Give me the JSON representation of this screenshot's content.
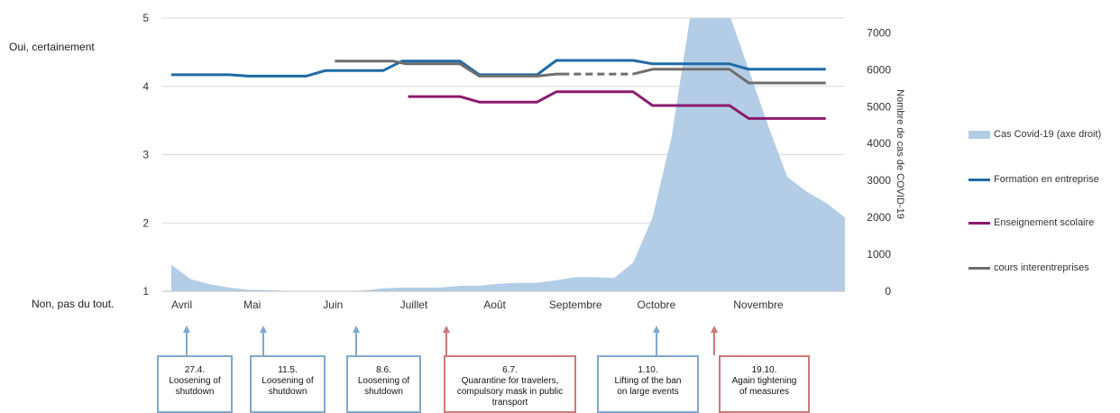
{
  "chart_data": {
    "type": "line",
    "left_axis": {
      "ticks": [
        "1",
        "2",
        "3",
        "4",
        "5"
      ],
      "ylim": [
        1,
        5
      ],
      "top_label": "Oui, certainement",
      "bottom_label": "Non, pas du tout."
    },
    "right_axis": {
      "ticks": [
        "0",
        "1000",
        "2000",
        "3000",
        "4000",
        "5000",
        "6000",
        "7000"
      ],
      "ylim": [
        0,
        7400
      ],
      "label": "Nombre de cas de COVID-19"
    },
    "x_axis": {
      "range": [
        0,
        35
      ],
      "month_labels": [
        {
          "x": 0,
          "label": "Avril"
        },
        {
          "x": 4.2,
          "label": "Mai"
        },
        {
          "x": 8.4,
          "label": "Juin"
        },
        {
          "x": 12.6,
          "label": "Juillet"
        },
        {
          "x": 16.8,
          "label": "Août"
        },
        {
          "x": 21.0,
          "label": "Septembre"
        },
        {
          "x": 25.2,
          "label": "Octobre"
        },
        {
          "x": 30.5,
          "label": "Novembre"
        }
      ]
    },
    "area_series": {
      "name": "Cas Covid-19 (axe droit)",
      "color": "#b3cde6",
      "x": [
        0,
        1,
        2,
        3,
        4,
        5,
        6,
        7,
        8,
        9,
        10,
        11,
        12,
        13,
        14,
        15,
        16,
        17,
        18,
        19,
        20,
        21,
        22,
        23,
        24,
        25,
        26,
        27,
        28,
        29,
        30,
        31,
        32,
        33,
        34,
        35
      ],
      "values": [
        720,
        330,
        190,
        100,
        40,
        30,
        10,
        10,
        10,
        10,
        20,
        80,
        100,
        100,
        100,
        150,
        150,
        200,
        230,
        230,
        300,
        380,
        380,
        360,
        780,
        2000,
        4200,
        7600,
        7600,
        7500,
        6000,
        4500,
        3100,
        2700,
        2400,
        2000
      ]
    },
    "series": [
      {
        "name": "Formation en entreprise",
        "color": "#1f6aa5",
        "dashed": false,
        "points": [
          [
            0,
            4.17
          ],
          [
            3,
            4.17
          ],
          [
            4,
            4.15
          ],
          [
            7,
            4.15
          ],
          [
            8,
            4.23
          ],
          [
            11,
            4.23
          ],
          [
            12,
            4.37
          ],
          [
            15,
            4.37
          ],
          [
            16,
            4.17
          ],
          [
            19,
            4.17
          ],
          [
            20,
            4.38
          ],
          [
            24,
            4.38
          ],
          [
            25,
            4.33
          ],
          [
            29,
            4.33
          ],
          [
            30,
            4.25
          ],
          [
            34,
            4.25
          ]
        ]
      },
      {
        "name": "Enseignement scolaire",
        "color": "#8b1a6e",
        "dashed": false,
        "points": [
          [
            12.3,
            3.85
          ],
          [
            15,
            3.85
          ],
          [
            16,
            3.77
          ],
          [
            19,
            3.77
          ],
          [
            20,
            3.92
          ],
          [
            24,
            3.92
          ],
          [
            25,
            3.72
          ],
          [
            29,
            3.72
          ],
          [
            30,
            3.53
          ],
          [
            34,
            3.53
          ]
        ]
      },
      {
        "name": "cours interentreprises",
        "color": "#6e6e6e",
        "dashed": false,
        "points": [
          [
            8.5,
            4.37
          ],
          [
            11.5,
            4.37
          ],
          [
            12.2,
            4.33
          ],
          [
            15,
            4.33
          ],
          [
            16,
            4.15
          ],
          [
            19,
            4.15
          ],
          [
            20,
            4.18
          ],
          [
            20.3,
            4.18
          ]
        ]
      },
      {
        "name": "",
        "color": "#6e6e6e",
        "dashed": true,
        "points": [
          [
            20.3,
            4.18
          ],
          [
            24,
            4.18
          ]
        ]
      },
      {
        "name": "",
        "color": "#6e6e6e",
        "dashed": false,
        "points": [
          [
            24,
            4.18
          ],
          [
            25,
            4.25
          ],
          [
            29,
            4.25
          ],
          [
            30,
            4.05
          ],
          [
            34,
            4.05
          ]
        ]
      }
    ],
    "legend": {
      "placement": "right",
      "items": [
        {
          "label": "Cas Covid-19 (axe droit)",
          "kind": "area",
          "color": "#b3cde6"
        },
        {
          "label": "Formation en entreprise",
          "kind": "line",
          "color": "#1f6aa5"
        },
        {
          "label": "Enseignement scolaire",
          "kind": "line",
          "color": "#8b1a6e"
        },
        {
          "label": "cours interentreprises",
          "kind": "line",
          "color": "#6e6e6e"
        }
      ]
    },
    "annotations": [
      {
        "x": 0.8,
        "lines": [
          "27.4.",
          "Loosening of",
          "shutdown"
        ],
        "color": "#7fa9cf"
      },
      {
        "x": 4.8,
        "lines": [
          "11.5.",
          "Loosening of",
          "shutdown"
        ],
        "color": "#7fa9cf"
      },
      {
        "x": 9.6,
        "lines": [
          "8.6.",
          "Loosening of",
          "shutdown"
        ],
        "color": "#7fa9cf"
      },
      {
        "x": 14.3,
        "lines": [
          "6.7.",
          "Quarantine for travelers,",
          "compulsory mask in public",
          "transport"
        ],
        "color": "#c97a78"
      },
      {
        "x": 25.2,
        "lines": [
          "1.10.",
          "Lifting of the ban",
          "on large events"
        ],
        "color": "#7fa9cf"
      },
      {
        "x": 28.2,
        "lines": [
          "19.10.",
          "Again tightening",
          "of measures"
        ],
        "color": "#c97a78"
      }
    ],
    "grid": true
  }
}
